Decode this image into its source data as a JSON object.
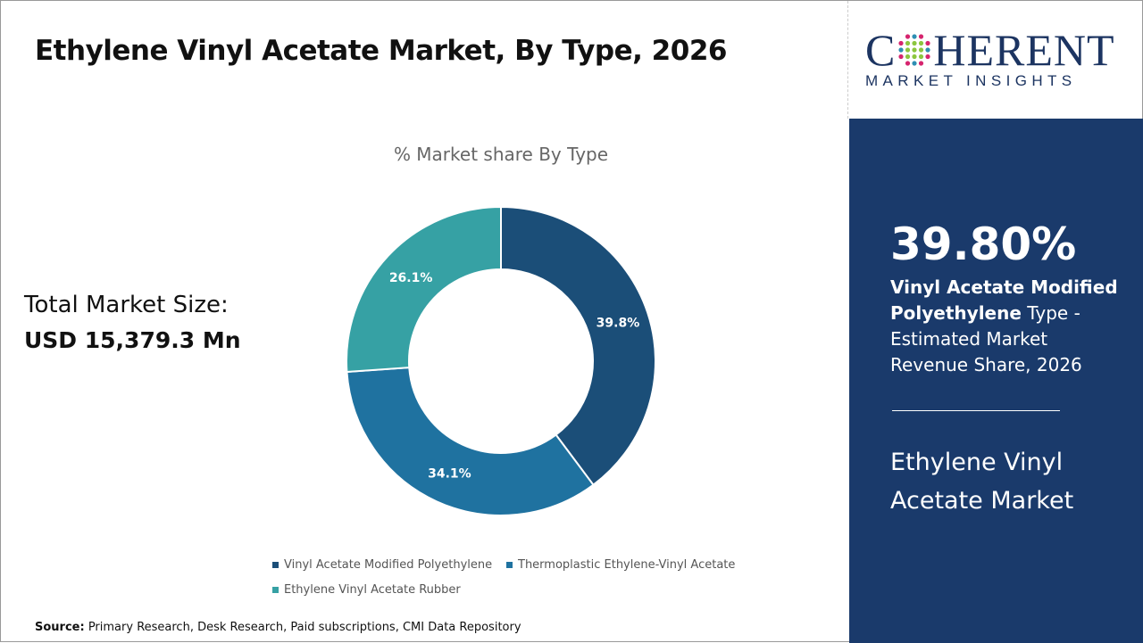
{
  "header": {
    "title": "Ethylene Vinyl Acetate Market, By Type, 2026"
  },
  "total": {
    "label": "Total Market Size:",
    "value": "USD 15,379.3 Mn"
  },
  "chart_data": {
    "type": "pie",
    "donut": true,
    "title": "% Market share By Type",
    "categories": [
      "Vinyl Acetate Modified Polyethylene",
      "Thermoplastic Ethylene-Vinyl Acetate",
      "Ethylene Vinyl Acetate Rubber"
    ],
    "values": [
      39.8,
      34.1,
      26.1
    ],
    "labels": [
      "39.8%",
      "34.1%",
      "26.1%"
    ],
    "colors": [
      "#1b4e78",
      "#1f72a0",
      "#36a1a4"
    ],
    "legend": "bottom"
  },
  "source": {
    "label": "Source:",
    "text": " Primary Research, Desk Research, Paid subscriptions, CMI Data Repository"
  },
  "logo": {
    "main_left": "C",
    "main_right": "HERENT",
    "sub": "MARKET INSIGHTS"
  },
  "panel": {
    "percent": "39.80%",
    "bold": "Vinyl Acetate Modified Polyethylene",
    "rest": " Type - Estimated Market Revenue Share, 2026",
    "market": "Ethylene Vinyl Acetate Market",
    "bg": "#1a3a6b"
  }
}
